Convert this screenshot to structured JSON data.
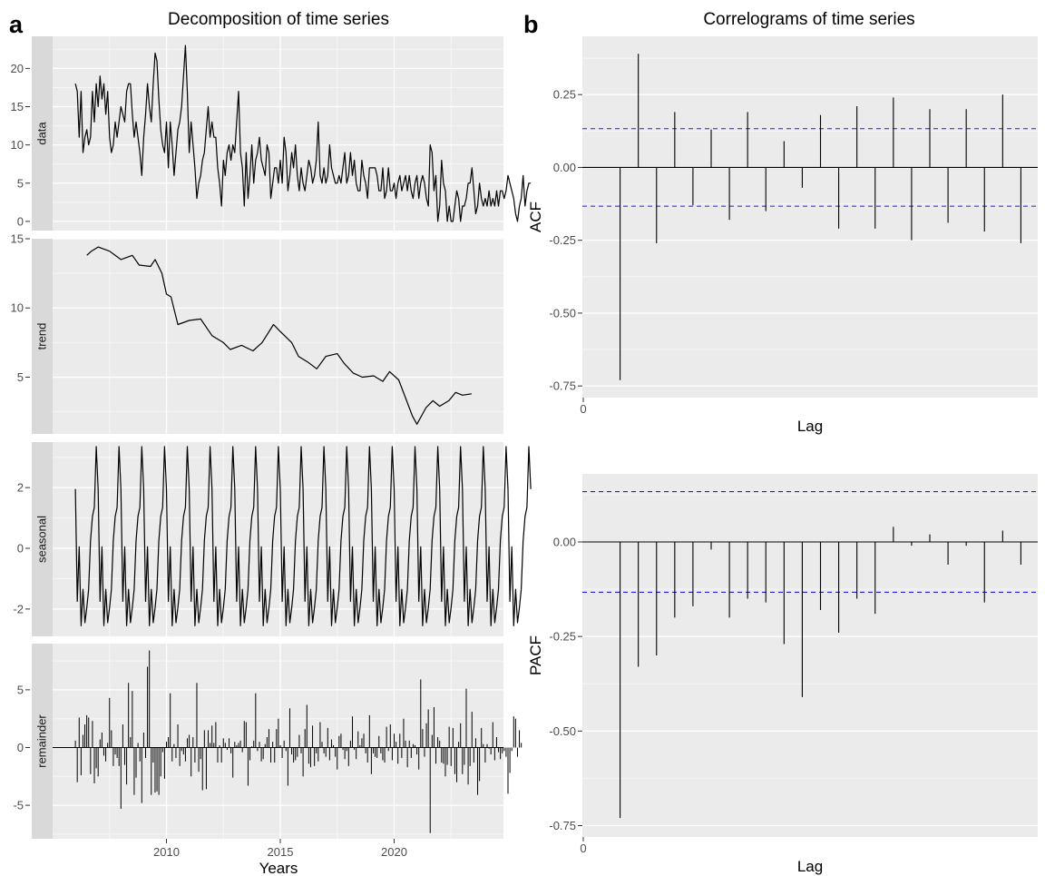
{
  "panels": {
    "a": {
      "letter": "a",
      "title": "Decomposition of time series",
      "xlabel": "Years",
      "x_ticks": [
        "2010",
        "2015",
        "2020"
      ]
    },
    "b": {
      "letter": "b",
      "title": "Correlograms of time series"
    }
  },
  "chart_data": [
    {
      "type": "line",
      "name": "decomposition",
      "xlabel": "Years",
      "x_range": [
        2005.0,
        2024.8
      ],
      "x_ticks": [
        2010,
        2015,
        2020
      ],
      "facets": [
        {
          "label": "data",
          "type": "line",
          "ylim": [
            -1.2,
            24.2
          ],
          "y_ticks": [
            0,
            5,
            10,
            15,
            20
          ],
          "x_start": 2006.0,
          "x_step": 0.08333,
          "values": [
            18,
            17,
            11,
            17,
            9,
            11,
            12,
            10,
            11,
            17,
            13,
            18,
            15,
            19,
            16,
            18,
            14,
            17,
            11,
            9,
            10,
            13,
            11,
            13,
            15,
            14,
            13,
            17,
            18,
            18,
            14,
            11,
            13,
            11,
            9,
            6,
            11,
            14,
            18,
            15,
            13,
            18,
            22,
            21,
            16,
            12,
            10,
            9,
            13,
            7,
            13,
            10,
            6,
            9,
            12,
            13,
            15,
            19,
            23,
            17,
            9,
            13,
            10,
            7,
            3,
            5,
            6,
            8,
            9,
            12,
            15,
            11,
            13,
            11,
            11,
            7,
            5,
            2,
            8,
            6,
            9,
            10,
            8,
            10,
            9,
            13,
            17,
            9,
            7,
            2,
            9,
            3,
            6,
            10,
            5,
            8,
            9,
            11,
            8,
            7,
            6,
            10,
            9,
            3,
            5,
            7,
            7,
            5,
            8,
            5,
            11,
            9,
            4,
            6,
            9,
            7,
            10,
            6,
            4,
            7,
            5,
            4,
            6,
            8,
            7,
            5,
            6,
            8,
            13,
            6,
            5,
            7,
            5,
            6,
            10,
            7,
            6,
            5,
            5,
            6,
            5,
            7,
            9,
            5,
            6,
            9,
            6,
            8,
            5,
            4,
            4,
            8,
            6,
            5,
            3,
            7,
            7,
            7,
            7,
            6,
            4,
            4,
            7,
            3,
            4,
            7,
            4,
            4,
            5,
            3,
            5,
            6,
            4,
            5,
            6,
            4,
            6,
            4,
            3,
            5,
            6,
            3,
            5,
            6,
            5,
            3,
            2,
            10,
            9,
            4,
            6,
            0,
            2,
            8,
            5,
            4,
            0,
            2,
            0,
            0,
            2,
            4,
            3,
            0,
            2,
            2,
            3,
            5,
            5,
            7,
            4,
            1,
            2,
            5,
            3,
            2,
            3,
            2,
            4,
            2,
            3,
            2,
            4,
            2,
            4,
            4,
            3,
            4,
            6,
            5,
            4,
            3,
            1,
            0,
            2,
            3,
            6,
            2,
            4,
            5,
            5
          ]
        },
        {
          "label": "trend",
          "type": "line",
          "ylim": [
            0.9,
            15.0
          ],
          "y_ticks": [
            5,
            10,
            15
          ],
          "points": [
            [
              2006.5,
              13.8
            ],
            [
              2006.7,
              14.1
            ],
            [
              2007.0,
              14.4
            ],
            [
              2007.5,
              14.1
            ],
            [
              2008.0,
              13.5
            ],
            [
              2008.5,
              13.8
            ],
            [
              2008.8,
              13.1
            ],
            [
              2009.3,
              13.0
            ],
            [
              2009.5,
              13.5
            ],
            [
              2009.8,
              12.5
            ],
            [
              2010.0,
              11.0
            ],
            [
              2010.2,
              10.8
            ],
            [
              2010.5,
              8.8
            ],
            [
              2011.0,
              9.1
            ],
            [
              2011.5,
              9.2
            ],
            [
              2012.0,
              8.0
            ],
            [
              2012.5,
              7.5
            ],
            [
              2012.8,
              7.0
            ],
            [
              2013.3,
              7.3
            ],
            [
              2013.8,
              6.9
            ],
            [
              2014.2,
              7.5
            ],
            [
              2014.7,
              8.8
            ],
            [
              2015.0,
              8.3
            ],
            [
              2015.5,
              7.5
            ],
            [
              2015.8,
              6.5
            ],
            [
              2016.2,
              6.1
            ],
            [
              2016.6,
              5.6
            ],
            [
              2017.0,
              6.5
            ],
            [
              2017.5,
              6.7
            ],
            [
              2017.8,
              6.0
            ],
            [
              2018.2,
              5.3
            ],
            [
              2018.6,
              5.0
            ],
            [
              2019.1,
              5.1
            ],
            [
              2019.5,
              4.7
            ],
            [
              2019.8,
              5.4
            ],
            [
              2020.2,
              4.8
            ],
            [
              2020.5,
              3.5
            ],
            [
              2020.8,
              2.2
            ],
            [
              2021.0,
              1.6
            ],
            [
              2021.4,
              2.8
            ],
            [
              2021.7,
              3.3
            ],
            [
              2022.0,
              2.9
            ],
            [
              2022.4,
              3.3
            ],
            [
              2022.7,
              3.9
            ],
            [
              2023.0,
              3.7
            ],
            [
              2023.4,
              3.8
            ]
          ]
        },
        {
          "label": "seasonal",
          "type": "line",
          "ylim": [
            -2.9,
            3.5
          ],
          "y_ticks": [
            -2,
            0,
            2
          ],
          "x_start": 2006.0,
          "x_step": 0.08333,
          "cycle": [
            1.95,
            -1.75,
            0.05,
            -2.55,
            -1.35,
            -2.45,
            -1.95,
            -1.35,
            0.25,
            1.05,
            1.35,
            3.35
          ]
        },
        {
          "label": "remainder",
          "type": "bar",
          "ylim": [
            -7.9,
            9.0
          ],
          "y_ticks": [
            -5,
            0,
            5
          ],
          "x_start": 2006.0,
          "x_step": 0.08333,
          "values": [
            0.6,
            -3,
            2.6,
            -2.4,
            1.1,
            2,
            2.8,
            2.6,
            -2.3,
            2.3,
            -3.1,
            -1.8,
            -2.5,
            0.7,
            1.3,
            -0.7,
            -1.2,
            0.4,
            4.3,
            1.5,
            -1.6,
            -0.6,
            -0.9,
            -1.6,
            -5.3,
            2,
            -1.5,
            -3.2,
            5.6,
            0.9,
            4.9,
            -4.1,
            -2.6,
            0.4,
            -1.2,
            -4.8,
            1.3,
            -0.9,
            7,
            8.4,
            -4.1,
            -1.3,
            -3.9,
            -3.8,
            -4.1,
            -2.5,
            -0.4,
            -2.7,
            0.5,
            0.9,
            4.7,
            -1.2,
            0.3,
            -0.9,
            2,
            -1.6,
            -0.3,
            -0.6,
            -1.2,
            0.8,
            1.1,
            -2.5,
            0.9,
            -1.3,
            5.6,
            -2.1,
            -1,
            -3.7,
            1.5,
            -3.6,
            1.5,
            0.4,
            1.9,
            0.4,
            2.2,
            -1.3,
            0.2,
            -1.3,
            0.8,
            0.4,
            -0.2,
            0.8,
            -0.5,
            -2.6,
            0.5,
            0.2,
            0.4,
            0.6,
            -0.4,
            2.3,
            2.2,
            -3.3,
            -1.1,
            0.1,
            0.6,
            4.7,
            -0.3,
            0.5,
            -1.2,
            -1,
            0.3,
            0.9,
            1.6,
            -1.3,
            0.5,
            -1.3,
            1.6,
            2.5,
            0.2,
            -0.9,
            0.6,
            -0.3,
            -3.3,
            3.4,
            -0.6,
            -1.3,
            -1.1,
            -0.8,
            1.1,
            -0.5,
            -2.5,
            1.6,
            3.7,
            -1.4,
            -1.7,
            1.9,
            -1.6,
            -0.5,
            -1.2,
            2.2,
            0.5,
            -0.5,
            -0.8,
            1.7,
            -1.1,
            0.7,
            0.2,
            -0.8,
            -1.9,
            1,
            1.2,
            -0.2,
            -1,
            -0.3,
            -1.6,
            0.6,
            2.7,
            -0.2,
            -1,
            1.4,
            0.2,
            0.8,
            1.2,
            -0.5,
            -1.3,
            2.8,
            -2.3,
            -0.5,
            -0.8,
            -0.9,
            1,
            -0.5,
            -1.1,
            -1.3,
            1.8,
            -0.3,
            2,
            -1.1,
            1.2,
            0.5,
            -1.4,
            1.2,
            -0.9,
            2.5,
            0.6,
            -1.7,
            0.6,
            -0.9,
            0.3,
            0.2,
            -0.6,
            -1.9,
            5.9,
            1.6,
            -0.8,
            2.1,
            3.3,
            -7.4,
            1.1,
            3.5,
            -1.4,
            0.9,
            0.6,
            -1.3,
            -1.4,
            -2.5,
            -1.5,
            1.8,
            -1.6,
            1.7,
            -2.3,
            -3,
            0.5,
            2.1,
            -2.3,
            -1.5,
            5.1,
            -3.2,
            -1.6,
            3.1,
            -1.3,
            0.8,
            -4.1,
            -2.9,
            1.7,
            0.3,
            -1.3,
            0.3,
            -0.1,
            -0.6,
            2.2,
            -1.1,
            0.9,
            -0.4,
            -1,
            -0.5,
            -0.3,
            -0.8,
            -4,
            -2.2,
            -0.3,
            2.7,
            2.5,
            -0.8,
            1.5,
            0.4
          ]
        }
      ]
    },
    {
      "type": "bar",
      "name": "acf",
      "ylabel": "ACF",
      "xlabel": "Lag",
      "x_ticks": [
        0
      ],
      "y_ticks": [
        -0.75,
        -0.5,
        -0.25,
        0.0,
        0.25
      ],
      "y_tick_labels": [
        "-0.75",
        "-0.50",
        "-0.25",
        "0.00",
        "0.25"
      ],
      "ylim": [
        -0.79,
        0.45
      ],
      "lag_max": 23,
      "ci": 0.133,
      "values": [
        -0.73,
        0.39,
        -0.26,
        0.19,
        -0.13,
        0.13,
        -0.18,
        0.19,
        -0.15,
        0.09,
        -0.07,
        0.18,
        -0.21,
        0.21,
        -0.21,
        0.24,
        -0.25,
        0.2,
        -0.19,
        0.2,
        -0.22,
        0.25,
        -0.26
      ]
    },
    {
      "type": "bar",
      "name": "pacf",
      "ylabel": "PACF",
      "xlabel": "Lag",
      "x_ticks": [
        0
      ],
      "y_ticks": [
        -0.75,
        -0.5,
        -0.25,
        0.0
      ],
      "y_tick_labels": [
        "-0.75",
        "-0.50",
        "-0.25",
        "0.00"
      ],
      "ylim": [
        -0.78,
        0.18
      ],
      "lag_max": 23,
      "ci": 0.133,
      "values": [
        -0.73,
        -0.33,
        -0.3,
        -0.2,
        -0.17,
        -0.02,
        -0.2,
        -0.15,
        -0.16,
        -0.27,
        -0.41,
        -0.18,
        -0.24,
        -0.15,
        -0.19,
        0.04,
        -0.01,
        0.02,
        -0.06,
        -0.01,
        -0.16,
        0.03,
        -0.06
      ]
    }
  ]
}
